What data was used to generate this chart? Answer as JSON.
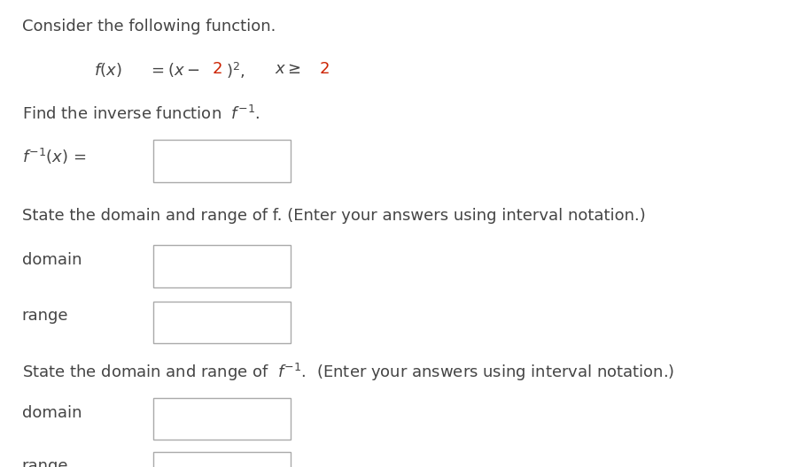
{
  "background_color": "#ffffff",
  "text_color": "#444444",
  "red_color": "#cc2200",
  "dark_color": "#222222",
  "font_size_main": 13.0,
  "line1": "Consider the following function.",
  "line3": "Find the inverse function  ",
  "line5": "State the domain and range of f. (Enter your answers using interval notation.)",
  "label_domain": "domain",
  "label_range": "range"
}
